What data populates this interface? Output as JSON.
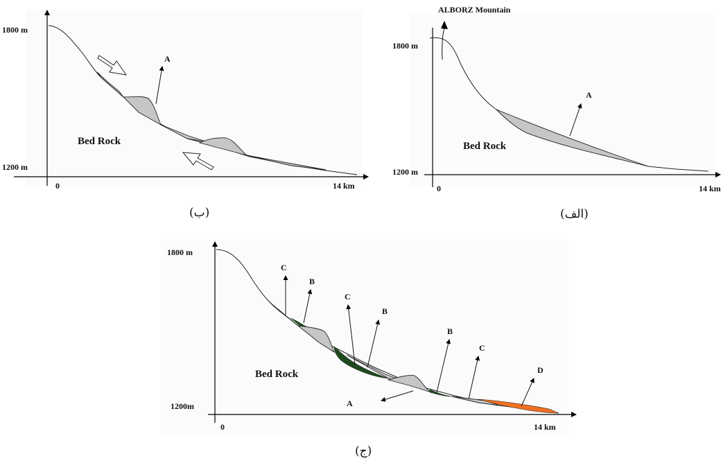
{
  "panel_b": {
    "y_top_label": "1800 m",
    "y_bottom_label": "1200 m",
    "x_start_label": "0",
    "x_end_label": "14 km",
    "bedrock_label": "Bed Rock",
    "deposit_label": "A",
    "caption": "(ب)"
  },
  "panel_alef": {
    "mountain_label": "ALBORZ Mountain",
    "y_top_label": "1800 m",
    "y_bottom_label": "1200 m",
    "x_start_label": "0",
    "x_end_label": "14 km",
    "bedrock_label": "Bed Rock",
    "deposit_label": "A",
    "caption": "(الف)"
  },
  "panel_jim": {
    "y_top_label": "1800 m",
    "y_bottom_label": "1200m",
    "x_start_label": "0",
    "x_end_label": "14 km",
    "bedrock_label": "Bed Rock",
    "labels": [
      "C",
      "B",
      "C",
      "B",
      "B",
      "C",
      "D",
      "A"
    ],
    "caption": "(ج)"
  },
  "colors": {
    "deposit_a": "#c6c6c6",
    "deposit_b": "#1e4a1e",
    "deposit_d": "#f07020",
    "line": "#222222"
  }
}
